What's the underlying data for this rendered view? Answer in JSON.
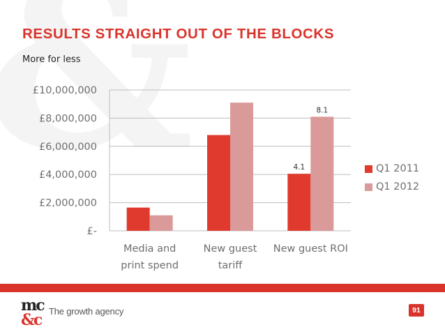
{
  "slide": {
    "title": "RESULTS STRAIGHT OUT OF THE BLOCKS",
    "subtitle": "More for less"
  },
  "chart_data": {
    "type": "bar",
    "categories": [
      [
        "Media and",
        "print spend"
      ],
      [
        "New guest",
        "tariff"
      ],
      [
        "New guest ROI"
      ]
    ],
    "series": [
      {
        "name": "Q1 2011",
        "color": "#e03a2e",
        "values": [
          1650000,
          6800000,
          4050000
        ]
      },
      {
        "name": "Q1 2012",
        "color": "#da9a9a",
        "values": [
          1100000,
          9100000,
          8100000
        ]
      }
    ],
    "data_labels": [
      {
        "category_index": 2,
        "series_index": 0,
        "text": "4.1"
      },
      {
        "category_index": 2,
        "series_index": 1,
        "text": "8.1"
      }
    ],
    "yticks": [
      {
        "value": 0,
        "label": "£-"
      },
      {
        "value": 2000000,
        "label": "£2,000,000"
      },
      {
        "value": 4000000,
        "label": "£4,000,000"
      },
      {
        "value": 6000000,
        "label": "£6,000,000"
      },
      {
        "value": 8000000,
        "label": "£8,000,000"
      },
      {
        "value": 10000000,
        "label": "£10,000,000"
      }
    ],
    "ylim": [
      0,
      10000000
    ],
    "title": "",
    "xlabel": "",
    "ylabel": "",
    "grid": "horizontal",
    "legend_position": "right"
  },
  "footer": {
    "logo_text_top": "mc",
    "logo_text_bottom": "&c",
    "tagline": "The growth agency",
    "page_number": "91",
    "accent_color": "#d9342b"
  }
}
